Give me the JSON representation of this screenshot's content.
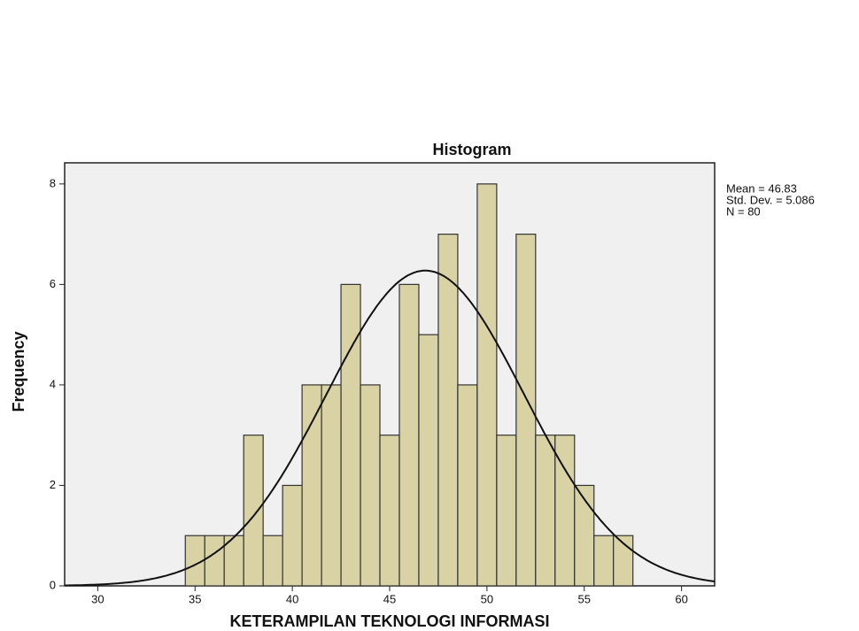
{
  "chart_data": {
    "type": "histogram",
    "title": "Histogram",
    "x_label": "KETERAMPILAN TEKNOLOGI INFORMASI",
    "y_label": "Frequency",
    "bins": [
      34.5,
      35.5,
      36.5,
      37.5,
      38.5,
      39.5,
      40.5,
      41.5,
      42.5,
      43.5,
      44.5,
      45.5,
      46.5,
      47.5,
      48.5,
      49.5,
      50.5,
      51.5,
      52.5,
      53.5,
      54.5,
      55.5,
      56.5,
      57.5
    ],
    "values": [
      1,
      1,
      1,
      3,
      1,
      2,
      4,
      4,
      6,
      4,
      3,
      6,
      5,
      7,
      4,
      8,
      3,
      7,
      3,
      3,
      2,
      1,
      1
    ],
    "color": "#d8d2a4",
    "xlim": [
      28.3,
      61.7
    ],
    "xticks": [
      30,
      35,
      40,
      45,
      50,
      55,
      60
    ],
    "ylim": [
      0,
      8.42
    ],
    "yticks": [
      0,
      2,
      4,
      6,
      8
    ],
    "stats_labels": [
      "Mean = 46.83",
      "Std. Dev. = 5.086",
      "N = 80"
    ],
    "curve": {
      "mean": 46.83,
      "sd": 5.086,
      "n": 80
    }
  }
}
